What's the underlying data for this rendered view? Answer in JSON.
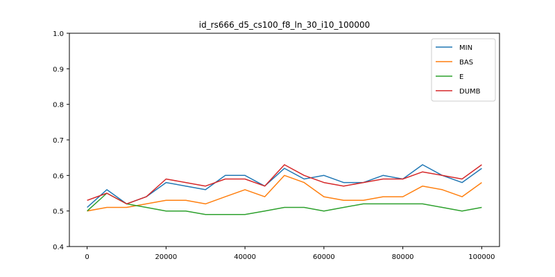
{
  "chart_data": {
    "type": "line",
    "title": "id_rs666_d5_cs100_f8_ln_30_i10_100000",
    "xlabel": "",
    "ylabel": "",
    "xlim": [
      -4500,
      104500
    ],
    "ylim": [
      0.4,
      1.0
    ],
    "xticks": [
      0,
      20000,
      40000,
      60000,
      80000,
      100000
    ],
    "xtick_labels": [
      "0",
      "20000",
      "40000",
      "60000",
      "80000",
      "100000"
    ],
    "yticks": [
      0.4,
      0.5,
      0.6,
      0.7,
      0.8,
      0.9,
      1.0
    ],
    "ytick_labels": [
      "0.4",
      "0.5",
      "0.6",
      "0.7",
      "0.8",
      "0.9",
      "1.0"
    ],
    "grid": false,
    "legend_position": "top-right",
    "x": [
      0,
      5000,
      10000,
      15000,
      20000,
      25000,
      30000,
      35000,
      40000,
      45000,
      50000,
      55000,
      60000,
      65000,
      70000,
      75000,
      80000,
      85000,
      90000,
      95000,
      100000
    ],
    "series": [
      {
        "name": "MIN",
        "color": "#1f77b4",
        "values": [
          0.51,
          0.56,
          0.52,
          0.54,
          0.58,
          0.57,
          0.56,
          0.6,
          0.6,
          0.57,
          0.62,
          0.59,
          0.6,
          0.58,
          0.58,
          0.6,
          0.59,
          0.63,
          0.6,
          0.58,
          0.62
        ]
      },
      {
        "name": "BAS",
        "color": "#ff7f0e",
        "values": [
          0.5,
          0.51,
          0.51,
          0.52,
          0.53,
          0.53,
          0.52,
          0.54,
          0.56,
          0.54,
          0.6,
          0.58,
          0.54,
          0.53,
          0.53,
          0.54,
          0.54,
          0.57,
          0.56,
          0.54,
          0.58
        ]
      },
      {
        "name": "E",
        "color": "#2ca02c",
        "values": [
          0.5,
          0.55,
          0.52,
          0.51,
          0.5,
          0.5,
          0.49,
          0.49,
          0.49,
          0.5,
          0.51,
          0.51,
          0.5,
          0.51,
          0.52,
          0.52,
          0.52,
          0.52,
          0.51,
          0.5,
          0.51
        ]
      },
      {
        "name": "DUMB",
        "color": "#d62728",
        "values": [
          0.53,
          0.55,
          0.52,
          0.54,
          0.59,
          0.58,
          0.57,
          0.59,
          0.59,
          0.57,
          0.63,
          0.6,
          0.58,
          0.57,
          0.58,
          0.59,
          0.59,
          0.61,
          0.6,
          0.59,
          0.63
        ]
      }
    ]
  }
}
